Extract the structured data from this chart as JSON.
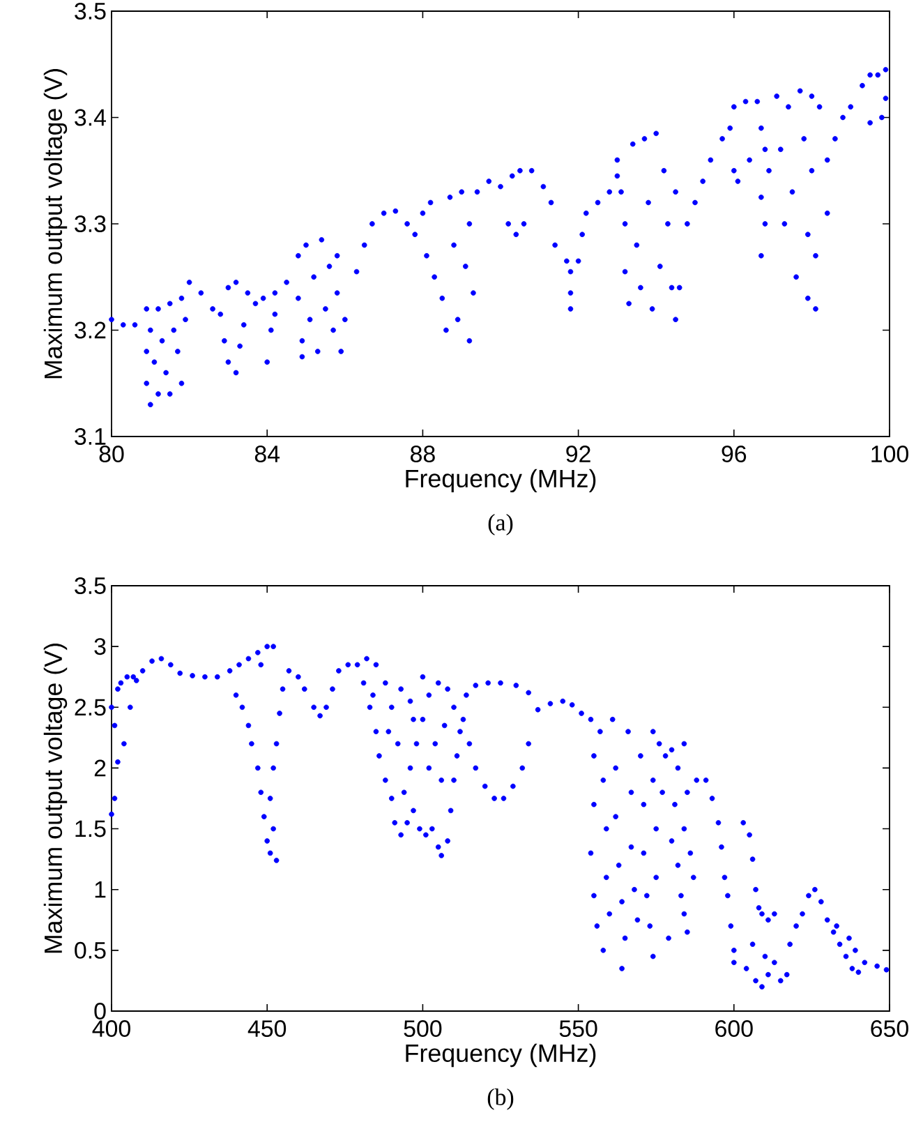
{
  "chart_data": [
    {
      "type": "scatter",
      "xlabel": "Frequency (MHz)",
      "ylabel": "Maximum output voltage (V)",
      "color": "#0000ff",
      "marker": "circle",
      "xlim": [
        80,
        100
      ],
      "ylim": [
        3.1,
        3.5
      ],
      "xticks": [
        80,
        84,
        88,
        92,
        96,
        100
      ],
      "yticks": [
        3.1,
        3.2,
        3.3,
        3.4,
        3.5
      ],
      "annotations": [
        "(a)"
      ],
      "x": [
        80.0,
        80.3,
        80.6,
        80.9,
        80.9,
        80.9,
        81.0,
        81.0,
        81.1,
        81.2,
        81.2,
        81.3,
        81.4,
        81.5,
        81.5,
        81.6,
        81.7,
        81.8,
        81.8,
        81.9,
        82.0,
        82.3,
        82.6,
        82.9,
        83.0,
        83.2,
        83.3,
        82.8,
        83.0,
        83.2,
        83.5,
        83.7,
        83.9,
        83.4,
        84.2,
        84.2,
        84.1,
        84.0,
        84.5,
        84.8,
        84.8,
        84.9,
        84.9,
        85.0,
        85.1,
        85.2,
        85.3,
        85.4,
        85.5,
        85.6,
        85.7,
        85.8,
        85.9,
        85.8,
        86.0,
        86.3,
        86.5,
        86.7,
        87.0,
        87.3,
        87.6,
        87.8,
        88.0,
        88.2,
        88.1,
        88.3,
        88.5,
        88.6,
        88.7,
        88.8,
        88.9,
        89.0,
        89.1,
        89.2,
        89.2,
        89.3,
        89.4,
        89.7,
        90.0,
        90.3,
        90.5,
        90.8,
        91.1,
        91.3,
        90.2,
        90.4,
        90.6,
        91.4,
        91.7,
        91.8,
        92.0,
        92.1,
        91.8,
        91.8,
        92.2,
        92.5,
        92.8,
        93.0,
        93.0,
        93.1,
        93.2,
        93.2,
        93.3,
        93.4,
        93.5,
        93.6,
        93.7,
        93.8,
        93.9,
        94.0,
        94.1,
        94.2,
        94.3,
        94.4,
        94.5,
        94.6,
        94.5,
        94.8,
        95.0,
        95.2,
        95.4,
        95.7,
        95.9,
        96.0,
        96.3,
        96.6,
        96.7,
        96.8,
        96.9,
        96.7,
        96.8,
        96.0,
        96.1,
        96.4,
        96.7,
        97.1,
        97.2,
        97.3,
        97.4,
        97.5,
        97.6,
        97.7,
        97.8,
        97.9,
        97.9,
        98.0,
        98.0,
        98.1,
        98.1,
        98.2,
        98.4,
        98.4,
        98.6,
        98.8,
        99.0,
        99.3,
        99.5,
        99.7,
        99.9,
        99.5,
        99.8,
        99.9
      ],
      "values": [
        3.21,
        3.205,
        3.205,
        3.22,
        3.18,
        3.15,
        3.13,
        3.2,
        3.17,
        3.22,
        3.14,
        3.19,
        3.16,
        3.225,
        3.14,
        3.2,
        3.18,
        3.23,
        3.15,
        3.21,
        3.245,
        3.235,
        3.22,
        3.19,
        3.17,
        3.16,
        3.185,
        3.215,
        3.24,
        3.245,
        3.235,
        3.225,
        3.23,
        3.205,
        3.235,
        3.215,
        3.2,
        3.17,
        3.245,
        3.27,
        3.23,
        3.19,
        3.175,
        3.28,
        3.21,
        3.25,
        3.18,
        3.285,
        3.22,
        3.26,
        3.2,
        3.235,
        3.18,
        3.27,
        3.21,
        3.255,
        3.28,
        3.3,
        3.31,
        3.312,
        3.3,
        3.29,
        3.31,
        3.32,
        3.27,
        3.25,
        3.23,
        3.2,
        3.325,
        3.28,
        3.21,
        3.33,
        3.26,
        3.19,
        3.3,
        3.235,
        3.33,
        3.34,
        3.335,
        3.345,
        3.35,
        3.35,
        3.335,
        3.32,
        3.3,
        3.29,
        3.3,
        3.28,
        3.265,
        3.255,
        3.265,
        3.29,
        3.22,
        3.235,
        3.31,
        3.32,
        3.33,
        3.345,
        3.36,
        3.33,
        3.3,
        3.255,
        3.225,
        3.375,
        3.28,
        3.24,
        3.38,
        3.32,
        3.22,
        3.385,
        3.26,
        3.35,
        3.3,
        3.24,
        3.33,
        3.24,
        3.21,
        3.3,
        3.32,
        3.34,
        3.36,
        3.38,
        3.39,
        3.41,
        3.415,
        3.415,
        3.39,
        3.37,
        3.35,
        3.325,
        3.3,
        3.35,
        3.34,
        3.36,
        3.27,
        3.42,
        3.37,
        3.3,
        3.41,
        3.33,
        3.25,
        3.425,
        3.38,
        3.29,
        3.23,
        3.42,
        3.35,
        3.22,
        3.27,
        3.41,
        3.31,
        3.36,
        3.38,
        3.4,
        3.41,
        3.43,
        3.44,
        3.44,
        3.445,
        3.395,
        3.4,
        3.418
      ]
    },
    {
      "type": "scatter",
      "xlabel": "Frequency (MHz)",
      "ylabel": "Maximum output voltage (V)",
      "color": "#0000ff",
      "marker": "circle",
      "xlim": [
        400,
        650
      ],
      "ylim": [
        0,
        3.5
      ],
      "xticks": [
        400,
        450,
        500,
        550,
        600,
        650
      ],
      "yticks": [
        0,
        0.5,
        1,
        1.5,
        2,
        2.5,
        3,
        3.5
      ],
      "annotations": [
        "(b)"
      ],
      "x": [
        400,
        401,
        402,
        401,
        400,
        402,
        403,
        405,
        407,
        404,
        406,
        408,
        410,
        413,
        416,
        419,
        422,
        426,
        430,
        434,
        438,
        441,
        444,
        447,
        450,
        452,
        448,
        440,
        442,
        444,
        445,
        447,
        448,
        449,
        450,
        451,
        453,
        452,
        451,
        452,
        453,
        454,
        455,
        457,
        460,
        462,
        465,
        467,
        469,
        471,
        473,
        476,
        479,
        481,
        483,
        485,
        486,
        488,
        490,
        491,
        493,
        495,
        497,
        499,
        501,
        503,
        505,
        506,
        508,
        509,
        510,
        511,
        512,
        510,
        508,
        505,
        502,
        500,
        498,
        496,
        494,
        492,
        490,
        488,
        485,
        484,
        489,
        496,
        500,
        504,
        506,
        507,
        502,
        497,
        493,
        482,
        514,
        517,
        521,
        525,
        530,
        534,
        513,
        515,
        517,
        520,
        523,
        526,
        529,
        532,
        534,
        537,
        541,
        545,
        548,
        551,
        554,
        555,
        555,
        554,
        555,
        556,
        558,
        557,
        558,
        559,
        559,
        560,
        561,
        562,
        562,
        563,
        564,
        564,
        565,
        566,
        567,
        567,
        568,
        569,
        570,
        571,
        571,
        572,
        573,
        574,
        574,
        575,
        575,
        574,
        576,
        577,
        578,
        580,
        582,
        581,
        580,
        582,
        583,
        584,
        585,
        584,
        586,
        587,
        579,
        585,
        584,
        588,
        591,
        593,
        595,
        596,
        597,
        598,
        599,
        600,
        600,
        603,
        605,
        606,
        607,
        608,
        609,
        611,
        613,
        606,
        604,
        607,
        609,
        611,
        613,
        615,
        617,
        610,
        618,
        620,
        622,
        624,
        626,
        628,
        630,
        632,
        634,
        636,
        638,
        640,
        637,
        639,
        642,
        633,
        646,
        649
      ],
      "values": [
        1.62,
        1.75,
        2.05,
        2.35,
        2.5,
        2.65,
        2.7,
        2.75,
        2.75,
        2.2,
        2.5,
        2.72,
        2.8,
        2.88,
        2.9,
        2.85,
        2.78,
        2.76,
        2.75,
        2.75,
        2.8,
        2.85,
        2.9,
        2.95,
        3.0,
        3.0,
        2.85,
        2.6,
        2.5,
        2.35,
        2.2,
        2.0,
        1.8,
        1.6,
        1.4,
        1.3,
        1.24,
        1.5,
        1.75,
        2.0,
        2.2,
        2.45,
        2.65,
        2.8,
        2.75,
        2.65,
        2.5,
        2.43,
        2.5,
        2.65,
        2.8,
        2.85,
        2.85,
        2.7,
        2.5,
        2.3,
        2.1,
        1.9,
        1.75,
        1.55,
        1.45,
        1.55,
        1.65,
        1.5,
        1.45,
        1.5,
        1.35,
        1.28,
        1.4,
        1.65,
        1.9,
        2.1,
        2.3,
        2.5,
        2.65,
        2.7,
        2.6,
        2.4,
        2.2,
        2.0,
        1.8,
        2.2,
        2.5,
        2.7,
        2.85,
        2.6,
        2.3,
        2.55,
        2.75,
        2.2,
        1.9,
        2.35,
        2.0,
        2.4,
        2.65,
        2.9,
        2.6,
        2.68,
        2.7,
        2.7,
        2.68,
        2.62,
        2.4,
        2.2,
        2.0,
        1.85,
        1.75,
        1.75,
        1.85,
        2.0,
        2.2,
        2.48,
        2.53,
        2.55,
        2.52,
        2.45,
        2.4,
        2.1,
        1.7,
        1.3,
        0.95,
        0.7,
        0.5,
        2.3,
        1.9,
        1.5,
        1.1,
        0.8,
        2.4,
        2.0,
        1.6,
        1.2,
        0.9,
        0.35,
        0.6,
        2.3,
        1.8,
        1.35,
        1.0,
        0.75,
        2.1,
        1.7,
        1.3,
        0.95,
        0.7,
        2.3,
        1.9,
        1.5,
        1.1,
        0.45,
        2.2,
        1.8,
        2.1,
        2.15,
        2.0,
        1.7,
        1.4,
        1.2,
        0.95,
        0.8,
        0.65,
        1.5,
        1.3,
        1.1,
        0.6,
        1.8,
        2.2,
        1.9,
        1.9,
        1.75,
        1.55,
        1.35,
        1.1,
        0.95,
        0.7,
        0.5,
        0.4,
        1.55,
        1.45,
        1.25,
        1.0,
        0.85,
        0.8,
        0.75,
        0.8,
        0.55,
        0.35,
        0.25,
        0.2,
        0.3,
        0.4,
        0.25,
        0.3,
        0.45,
        0.55,
        0.7,
        0.8,
        0.95,
        1.0,
        0.9,
        0.75,
        0.65,
        0.55,
        0.45,
        0.35,
        0.32,
        0.6,
        0.5,
        0.4,
        0.7,
        0.37,
        0.34
      ]
    }
  ]
}
